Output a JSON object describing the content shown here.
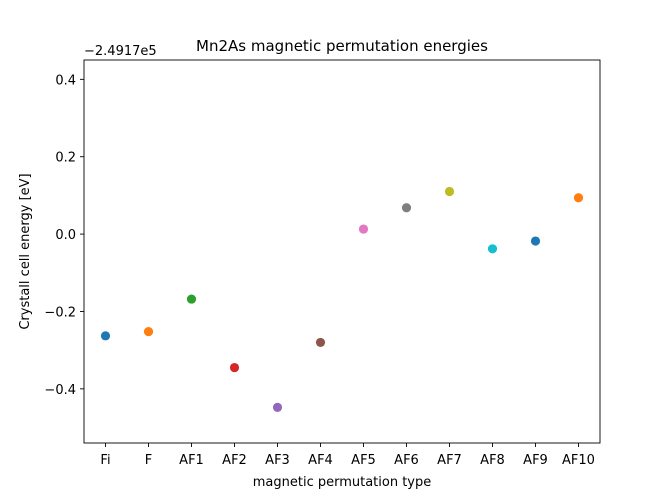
{
  "chart_data": {
    "type": "scatter",
    "title": "Mn2As magnetic permutation energies",
    "xlabel": "magnetic permutation type",
    "ylabel": "Crystall cell energy [eV]",
    "y_offset_label": "−2.4917e5",
    "categories": [
      "Fi",
      "F",
      "AF1",
      "AF2",
      "AF3",
      "AF4",
      "AF5",
      "AF6",
      "AF7",
      "AF8",
      "AF9",
      "AF10"
    ],
    "values": [
      -0.263,
      -0.252,
      -0.168,
      -0.345,
      -0.448,
      -0.28,
      0.013,
      0.068,
      0.11,
      -0.038,
      -0.018,
      0.094
    ],
    "colors": [
      "#1f77b4",
      "#ff7f0e",
      "#2ca02c",
      "#d62728",
      "#9467bd",
      "#8c564b",
      "#e377c2",
      "#7f7f7f",
      "#bcbd22",
      "#17becf",
      "#1f77b4",
      "#ff7f0e"
    ],
    "ylim": [
      -0.54,
      0.45
    ],
    "yticks": [
      -0.4,
      -0.2,
      0.0,
      0.2,
      0.4
    ],
    "ytick_labels": [
      "−0.4",
      "−0.2",
      "0.0",
      "0.2",
      "0.4"
    ],
    "grid": false,
    "legend": false
  }
}
